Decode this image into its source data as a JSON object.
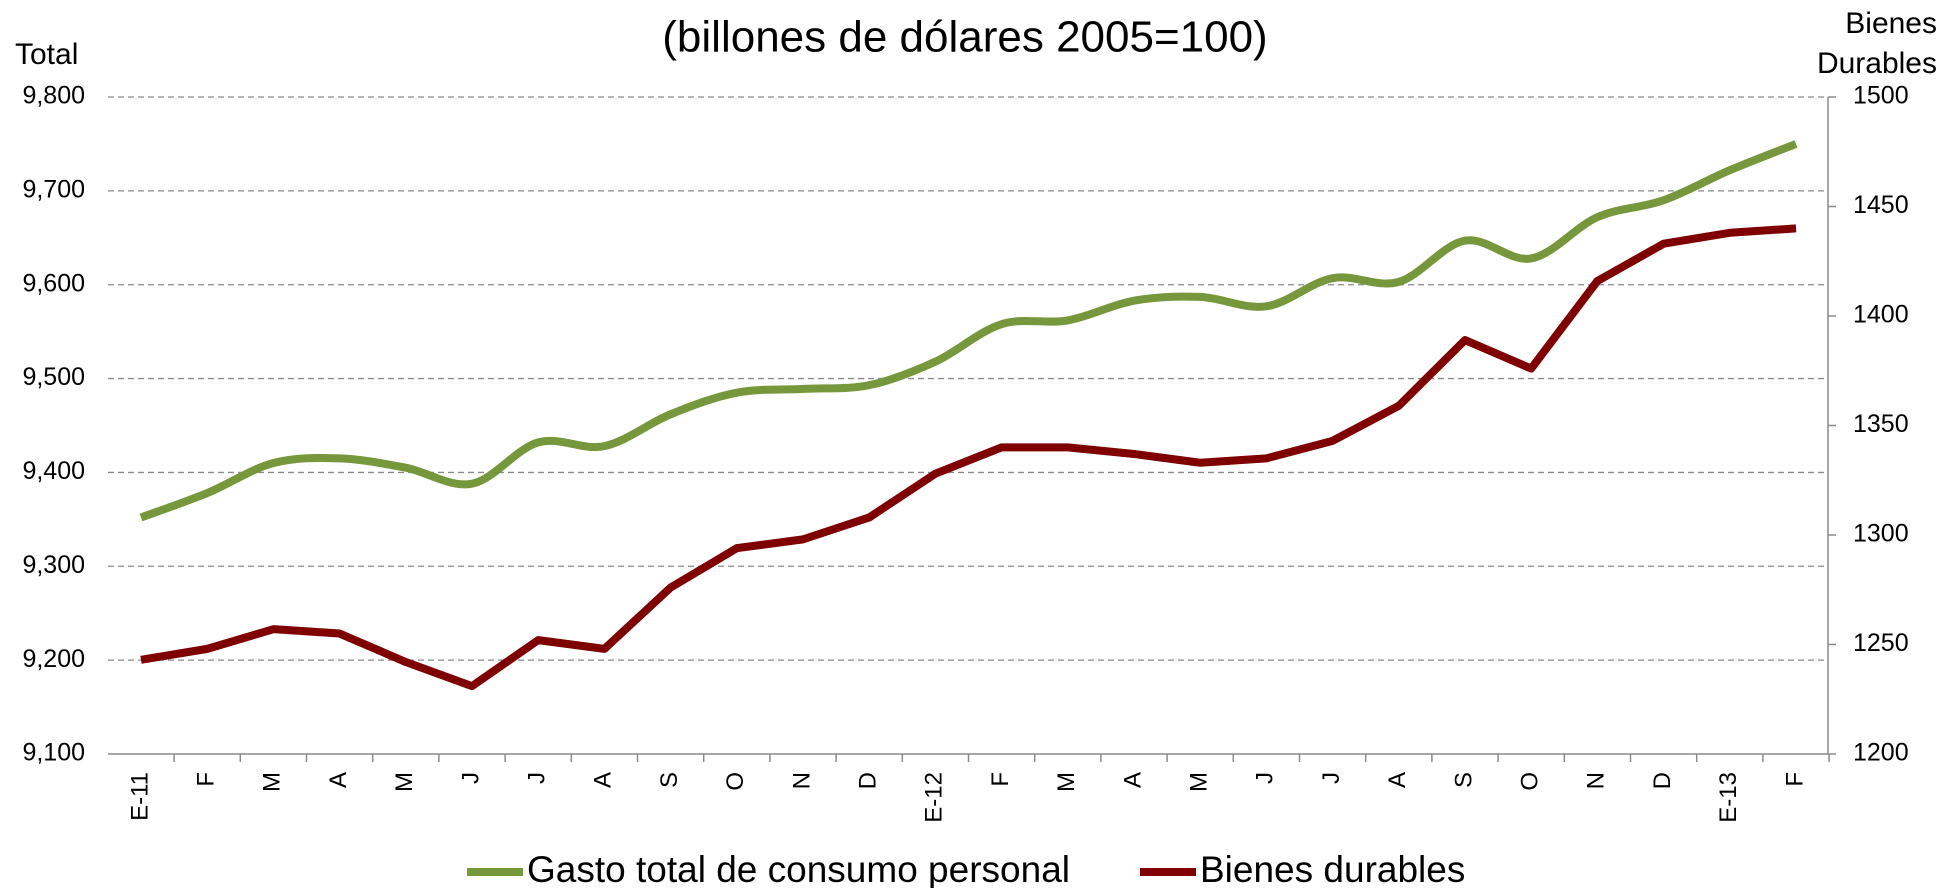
{
  "chart_data": {
    "type": "line",
    "title": "(billones de dólares 2005=100)",
    "ylabel": "Total",
    "y2label": "Bienes Durables",
    "categories": [
      "E-11",
      "F",
      "M",
      "A",
      "M",
      "J",
      "J",
      "A",
      "S",
      "O",
      "N",
      "D",
      "E-12",
      "F",
      "M",
      "A",
      "M",
      "J",
      "J",
      "A",
      "S",
      "O",
      "N",
      "D",
      "E-13",
      "F"
    ],
    "series": [
      {
        "name": "Gasto total de consumo personal",
        "color": "#77973d",
        "smooth": true,
        "values": [
          9352,
          9378,
          9410,
          9415,
          9405,
          9388,
          9432,
          9428,
          9462,
          9485,
          9489,
          9493,
          9518,
          9558,
          9562,
          9583,
          9587,
          9577,
          9607,
          9603,
          9647,
          9628,
          9672,
          9690,
          9722,
          9750
        ]
      },
      {
        "name": "Bienes durables",
        "color": "#7f0000",
        "axis": "y2",
        "smooth": false,
        "values": [
          1243,
          1248,
          1257,
          1255,
          1242,
          1231,
          1252,
          1248,
          1276,
          1294,
          1298,
          1308,
          1328,
          1340,
          1340,
          1337,
          1333,
          1335,
          1343,
          1359,
          1389,
          1376,
          1416,
          1433,
          1438,
          1440
        ]
      }
    ],
    "ylim": [
      9100,
      9800
    ],
    "yticks": [
      {
        "value": 9100,
        "label": "9,100"
      },
      {
        "value": 9200,
        "label": "9,200"
      },
      {
        "value": 9300,
        "label": "9,300"
      },
      {
        "value": 9400,
        "label": "9,400"
      },
      {
        "value": 9500,
        "label": "9,500"
      },
      {
        "value": 9600,
        "label": "9,600"
      },
      {
        "value": 9700,
        "label": "9,700"
      },
      {
        "value": 9800,
        "label": "9,800"
      }
    ],
    "y2lim": [
      1200,
      1500
    ],
    "y2ticks": [
      1200,
      1250,
      1300,
      1350,
      1400,
      1450,
      1500
    ],
    "grid": true,
    "legend": "bottom"
  }
}
